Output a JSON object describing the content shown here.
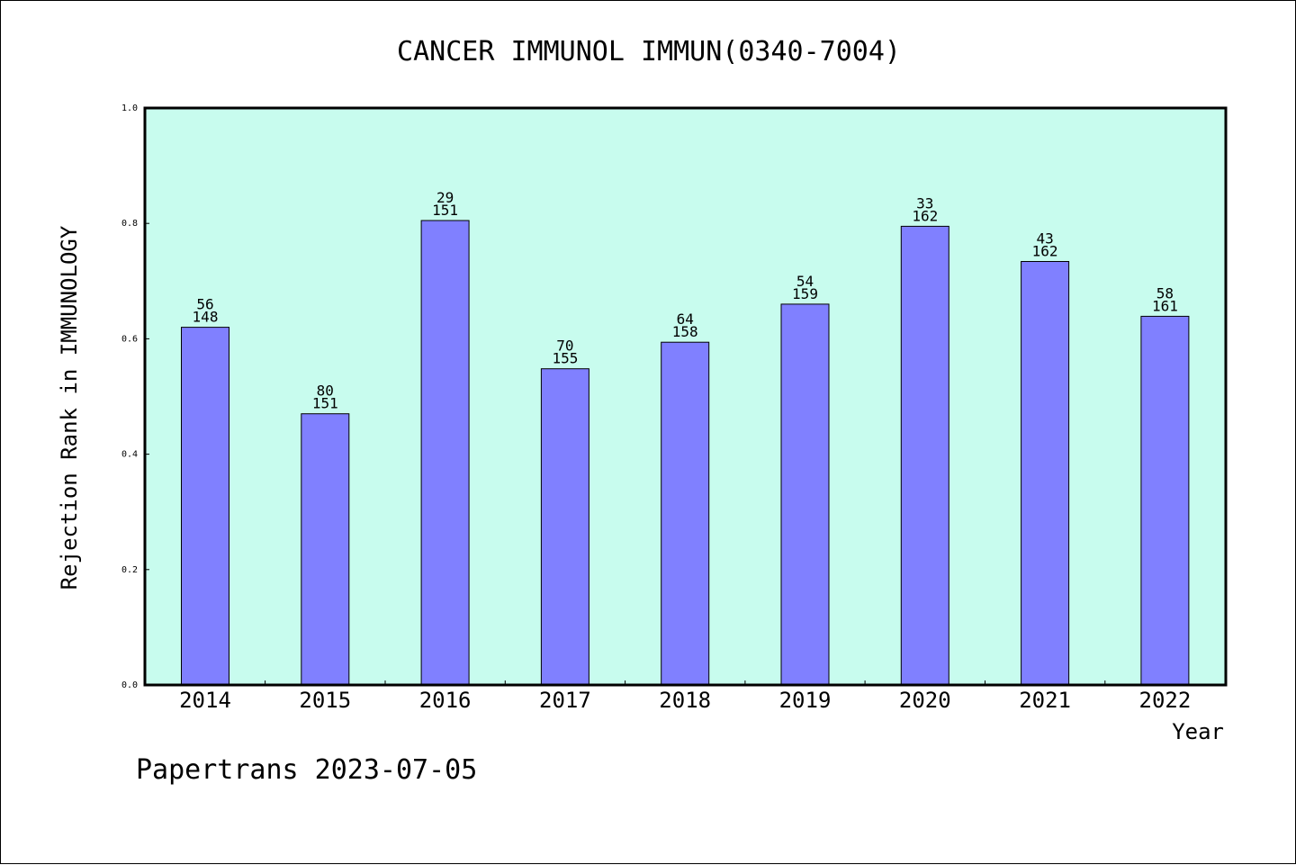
{
  "chart_data": {
    "type": "bar",
    "title": "CANCER IMMUNOL IMMUN(0340-7004)",
    "xlabel": "Year",
    "ylabel": "Rejection Rank in IMMUNOLOGY",
    "ylim": [
      0,
      1.0
    ],
    "yticks": [
      "0.0",
      "0.2",
      "0.4",
      "0.6",
      "0.8",
      "1.0"
    ],
    "categories": [
      "2014",
      "2015",
      "2016",
      "2017",
      "2018",
      "2019",
      "2020",
      "2021",
      "2022"
    ],
    "values": [
      0.62,
      0.47,
      0.805,
      0.548,
      0.594,
      0.66,
      0.795,
      0.734,
      0.639
    ],
    "label_top": [
      "56",
      "80",
      "29",
      "70",
      "64",
      "54",
      "33",
      "43",
      "58"
    ],
    "label_bottom": [
      "148",
      "151",
      "151",
      "155",
      "158",
      "159",
      "162",
      "162",
      "161"
    ],
    "grid": false,
    "colors": {
      "plot_background": "#c8fcee",
      "bar_fill": "#8080ff",
      "bar_stroke": "#000000"
    }
  },
  "footer": "Papertrans 2023-07-05"
}
